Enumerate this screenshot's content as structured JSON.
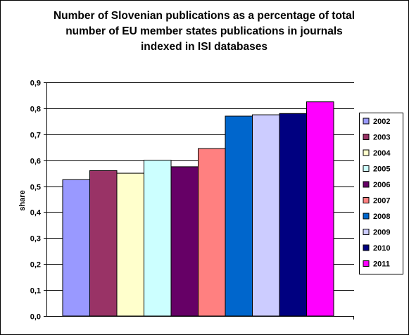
{
  "chart_data": {
    "type": "bar",
    "title": "Number of Slovenian publications as a percentage of total number of EU member states publications in journals indexed in ISI databases",
    "title_lines": [
      "Number of Slovenian publications as a percentage of total",
      "number of EU member states publications in journals",
      "indexed in ISI databases"
    ],
    "ylabel": "share",
    "xlabel": "",
    "ylim": [
      0,
      0.9
    ],
    "yticks": [
      "0,0",
      "0,1",
      "0,2",
      "0,3",
      "0,4",
      "0,5",
      "0,6",
      "0,7",
      "0,8",
      "0,9"
    ],
    "grid": true,
    "legend_position": "right",
    "series": [
      {
        "name": "2002",
        "values": [
          0.525
        ],
        "color": "#9999ff"
      },
      {
        "name": "2003",
        "values": [
          0.56
        ],
        "color": "#993366"
      },
      {
        "name": "2004",
        "values": [
          0.55
        ],
        "color": "#ffffcc"
      },
      {
        "name": "2005",
        "values": [
          0.6
        ],
        "color": "#ccffff"
      },
      {
        "name": "2006",
        "values": [
          0.575
        ],
        "color": "#660066"
      },
      {
        "name": "2007",
        "values": [
          0.645
        ],
        "color": "#ff8080"
      },
      {
        "name": "2008",
        "values": [
          0.77
        ],
        "color": "#0066cc"
      },
      {
        "name": "2009",
        "values": [
          0.775
        ],
        "color": "#ccccff"
      },
      {
        "name": "2010",
        "values": [
          0.78
        ],
        "color": "#000080"
      },
      {
        "name": "2011",
        "values": [
          0.825
        ],
        "color": "#ff00ff"
      }
    ]
  }
}
